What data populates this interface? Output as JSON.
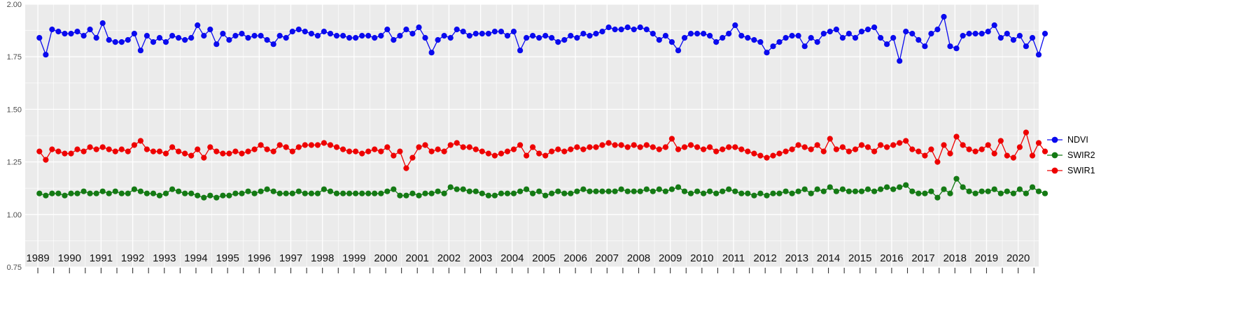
{
  "chart_data": {
    "type": "scatter",
    "title": "",
    "xlabel": "",
    "ylabel": "",
    "panel_background": "#ebebeb",
    "grid_color": "#ffffff",
    "grid": true,
    "legend_position": "right",
    "xlim": [
      1988.6,
      2020.65
    ],
    "ylim": [
      0.75,
      2.0
    ],
    "y_ticks": [
      "2.00",
      "1.75",
      "1.50",
      "1.25",
      "1.00",
      "0.75"
    ],
    "y_tick_values": [
      2.0,
      1.75,
      1.5,
      1.25,
      1.0,
      0.75
    ],
    "x_years": [
      1989,
      1990,
      1991,
      1992,
      1993,
      1994,
      1995,
      1996,
      1997,
      1998,
      1999,
      2000,
      2001,
      2002,
      2003,
      2004,
      2005,
      2006,
      2007,
      2008,
      2009,
      2010,
      2011,
      2012,
      2013,
      2014,
      2015,
      2016,
      2017,
      2018,
      2019,
      2020
    ],
    "x_offsets": [
      0.05,
      0.25,
      0.45,
      0.65,
      0.85
    ],
    "series": [
      {
        "name": "NDVI",
        "color": "#0a0aee",
        "values": [
          [
            1.84,
            1.76,
            1.88,
            1.87,
            1.86
          ],
          [
            1.86,
            1.87,
            1.85,
            1.88,
            1.84
          ],
          [
            1.91,
            1.83,
            1.82,
            1.82,
            1.83
          ],
          [
            1.86,
            1.78,
            1.85,
            1.82,
            1.84
          ],
          [
            1.82,
            1.85,
            1.84,
            1.83,
            1.84
          ],
          [
            1.9,
            1.85,
            1.88,
            1.81,
            1.86
          ],
          [
            1.83,
            1.85,
            1.86,
            1.84,
            1.85
          ],
          [
            1.85,
            1.83,
            1.81,
            1.85,
            1.84
          ],
          [
            1.87,
            1.88,
            1.87,
            1.86,
            1.85
          ],
          [
            1.87,
            1.86,
            1.85,
            1.85,
            1.84
          ],
          [
            1.84,
            1.85,
            1.85,
            1.84,
            1.85
          ],
          [
            1.88,
            1.83,
            1.85,
            1.88,
            1.86
          ],
          [
            1.89,
            1.84,
            1.77,
            1.83,
            1.85
          ],
          [
            1.84,
            1.88,
            1.87,
            1.85,
            1.86
          ],
          [
            1.86,
            1.86,
            1.87,
            1.87,
            1.85
          ],
          [
            1.87,
            1.78,
            1.84,
            1.85,
            1.84
          ],
          [
            1.85,
            1.84,
            1.82,
            1.83,
            1.85
          ],
          [
            1.84,
            1.86,
            1.85,
            1.86,
            1.87
          ],
          [
            1.89,
            1.88,
            1.88,
            1.89,
            1.88
          ],
          [
            1.89,
            1.88,
            1.86,
            1.83,
            1.85
          ],
          [
            1.82,
            1.78,
            1.84,
            1.86,
            1.86
          ],
          [
            1.86,
            1.85,
            1.82,
            1.84,
            1.86
          ],
          [
            1.9,
            1.85,
            1.84,
            1.83,
            1.82
          ],
          [
            1.77,
            1.8,
            1.82,
            1.84,
            1.85
          ],
          [
            1.85,
            1.8,
            1.84,
            1.82,
            1.86
          ],
          [
            1.87,
            1.88,
            1.84,
            1.86,
            1.84
          ],
          [
            1.87,
            1.88,
            1.89,
            1.84,
            1.81
          ],
          [
            1.84,
            1.73,
            1.87,
            1.86,
            1.83
          ],
          [
            1.8,
            1.86,
            1.88,
            1.94,
            1.8
          ],
          [
            1.79,
            1.85,
            1.86,
            1.86,
            1.86
          ],
          [
            1.87,
            1.9,
            1.84,
            1.86,
            1.83
          ],
          [
            1.85,
            1.8,
            1.84,
            1.76,
            1.86
          ]
        ]
      },
      {
        "name": "SWIR2",
        "color": "#147a14",
        "values": [
          [
            1.1,
            1.09,
            1.1,
            1.1,
            1.09
          ],
          [
            1.1,
            1.1,
            1.11,
            1.1,
            1.1
          ],
          [
            1.11,
            1.1,
            1.11,
            1.1,
            1.1
          ],
          [
            1.12,
            1.11,
            1.1,
            1.1,
            1.09
          ],
          [
            1.1,
            1.12,
            1.11,
            1.1,
            1.1
          ],
          [
            1.09,
            1.08,
            1.09,
            1.08,
            1.09
          ],
          [
            1.09,
            1.1,
            1.1,
            1.11,
            1.1
          ],
          [
            1.11,
            1.12,
            1.11,
            1.1,
            1.1
          ],
          [
            1.1,
            1.11,
            1.1,
            1.1,
            1.1
          ],
          [
            1.12,
            1.11,
            1.1,
            1.1,
            1.1
          ],
          [
            1.1,
            1.1,
            1.1,
            1.1,
            1.1
          ],
          [
            1.11,
            1.12,
            1.09,
            1.09,
            1.1
          ],
          [
            1.09,
            1.1,
            1.1,
            1.11,
            1.1
          ],
          [
            1.13,
            1.12,
            1.12,
            1.11,
            1.11
          ],
          [
            1.1,
            1.09,
            1.09,
            1.1,
            1.1
          ],
          [
            1.1,
            1.11,
            1.12,
            1.1,
            1.11
          ],
          [
            1.09,
            1.1,
            1.11,
            1.1,
            1.1
          ],
          [
            1.11,
            1.12,
            1.11,
            1.11,
            1.11
          ],
          [
            1.11,
            1.11,
            1.12,
            1.11,
            1.11
          ],
          [
            1.11,
            1.12,
            1.11,
            1.12,
            1.11
          ],
          [
            1.12,
            1.13,
            1.11,
            1.1,
            1.11
          ],
          [
            1.1,
            1.11,
            1.1,
            1.11,
            1.12
          ],
          [
            1.11,
            1.1,
            1.1,
            1.09,
            1.1
          ],
          [
            1.09,
            1.1,
            1.1,
            1.11,
            1.1
          ],
          [
            1.11,
            1.12,
            1.1,
            1.12,
            1.11
          ],
          [
            1.13,
            1.11,
            1.12,
            1.11,
            1.11
          ],
          [
            1.11,
            1.12,
            1.11,
            1.12,
            1.13
          ],
          [
            1.12,
            1.13,
            1.14,
            1.11,
            1.1
          ],
          [
            1.1,
            1.11,
            1.08,
            1.12,
            1.1
          ],
          [
            1.17,
            1.13,
            1.11,
            1.1,
            1.11
          ],
          [
            1.11,
            1.12,
            1.1,
            1.11,
            1.1
          ],
          [
            1.12,
            1.1,
            1.13,
            1.11,
            1.1
          ]
        ]
      },
      {
        "name": "SWIR1",
        "color": "#ee0000",
        "values": [
          [
            1.3,
            1.26,
            1.31,
            1.3,
            1.29
          ],
          [
            1.29,
            1.31,
            1.3,
            1.32,
            1.31
          ],
          [
            1.32,
            1.31,
            1.3,
            1.31,
            1.3
          ],
          [
            1.33,
            1.35,
            1.31,
            1.3,
            1.3
          ],
          [
            1.29,
            1.32,
            1.3,
            1.29,
            1.28
          ],
          [
            1.31,
            1.27,
            1.32,
            1.3,
            1.29
          ],
          [
            1.29,
            1.3,
            1.29,
            1.3,
            1.31
          ],
          [
            1.33,
            1.31,
            1.3,
            1.33,
            1.32
          ],
          [
            1.3,
            1.32,
            1.33,
            1.33,
            1.33
          ],
          [
            1.34,
            1.33,
            1.32,
            1.31,
            1.3
          ],
          [
            1.3,
            1.29,
            1.3,
            1.31,
            1.3
          ],
          [
            1.32,
            1.28,
            1.3,
            1.22,
            1.27
          ],
          [
            1.32,
            1.33,
            1.3,
            1.31,
            1.3
          ],
          [
            1.33,
            1.34,
            1.32,
            1.32,
            1.31
          ],
          [
            1.3,
            1.29,
            1.28,
            1.29,
            1.3
          ],
          [
            1.31,
            1.33,
            1.28,
            1.32,
            1.29
          ],
          [
            1.28,
            1.3,
            1.31,
            1.3,
            1.31
          ],
          [
            1.32,
            1.31,
            1.32,
            1.32,
            1.33
          ],
          [
            1.34,
            1.33,
            1.33,
            1.32,
            1.33
          ],
          [
            1.32,
            1.33,
            1.32,
            1.31,
            1.32
          ],
          [
            1.36,
            1.31,
            1.32,
            1.33,
            1.32
          ],
          [
            1.31,
            1.32,
            1.3,
            1.31,
            1.32
          ],
          [
            1.32,
            1.31,
            1.3,
            1.29,
            1.28
          ],
          [
            1.27,
            1.28,
            1.29,
            1.3,
            1.31
          ],
          [
            1.33,
            1.32,
            1.31,
            1.33,
            1.3
          ],
          [
            1.36,
            1.31,
            1.32,
            1.3,
            1.31
          ],
          [
            1.33,
            1.32,
            1.3,
            1.33,
            1.32
          ],
          [
            1.33,
            1.34,
            1.35,
            1.31,
            1.3
          ],
          [
            1.28,
            1.31,
            1.25,
            1.33,
            1.29
          ],
          [
            1.37,
            1.33,
            1.31,
            1.3,
            1.31
          ],
          [
            1.33,
            1.29,
            1.35,
            1.28,
            1.27
          ],
          [
            1.32,
            1.39,
            1.28,
            1.34,
            1.3
          ]
        ]
      }
    ]
  }
}
